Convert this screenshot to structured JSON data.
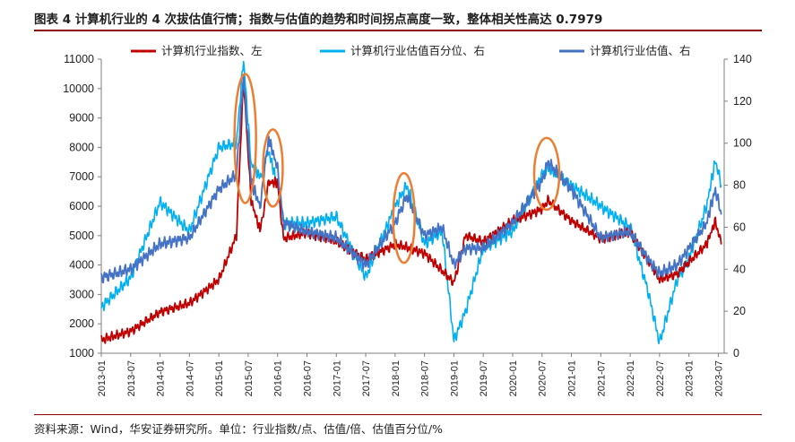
{
  "header": {
    "title": "图表 4  计算机行业的 4 次拔估值行情；指数与估值的趋势和时间拐点高度一致，整体相关性高达 0.7979"
  },
  "footer": {
    "source": "资料来源：Wind，华安证券研究所。单位：行业指数/点、估值/倍、估值百分位/%"
  },
  "chart_data": {
    "type": "line",
    "title": "计算机行业的 4 次拔估值行情",
    "y_left": {
      "min": 1000,
      "max": 11000,
      "ticks": [
        1000,
        2000,
        3000,
        4000,
        5000,
        6000,
        7000,
        8000,
        9000,
        10000,
        11000
      ]
    },
    "y_right": {
      "min": 0,
      "max": 140,
      "ticks": [
        0,
        20,
        40,
        60,
        80,
        100,
        120,
        140
      ]
    },
    "x_tick_labels": [
      "2013-01",
      "2013-07",
      "2014-01",
      "2014-07",
      "2015-01",
      "2015-07",
      "2016-01",
      "2016-07",
      "2017-01",
      "2017-07",
      "2018-01",
      "2018-07",
      "2019-01",
      "2019-07",
      "2020-01",
      "2020-07",
      "2021-01",
      "2021-07",
      "2022-01",
      "2022-07",
      "2023-01",
      "2023-07"
    ],
    "x": [
      2013.0,
      2013.5,
      2014.0,
      2014.5,
      2015.0,
      2015.3,
      2015.42,
      2015.55,
      2015.7,
      2015.85,
      2016.0,
      2016.1,
      2016.5,
      2017.0,
      2017.5,
      2018.0,
      2018.2,
      2018.5,
      2018.8,
      2019.0,
      2019.2,
      2019.5,
      2020.0,
      2020.5,
      2020.6,
      2021.0,
      2021.5,
      2022.0,
      2022.3,
      2022.5,
      2022.8,
      2023.0,
      2023.3,
      2023.45,
      2023.55
    ],
    "series": [
      {
        "name": "计算机行业指数、左",
        "axis": "left",
        "color": "#c00000",
        "values": [
          1450,
          1750,
          2400,
          2700,
          3500,
          5000,
          10300,
          6200,
          5200,
          6800,
          6800,
          4900,
          5100,
          4800,
          4200,
          4700,
          4600,
          4400,
          3800,
          3400,
          5000,
          4800,
          5500,
          5900,
          6200,
          5500,
          4900,
          5100,
          4200,
          3500,
          3700,
          4100,
          4700,
          5500,
          4700
        ]
      },
      {
        "name": "计算机行业估值百分位、右",
        "axis": "right",
        "color": "#00b0f0",
        "values": [
          22,
          36,
          72,
          58,
          98,
          100,
          140,
          90,
          84,
          96,
          80,
          62,
          62,
          65,
          36,
          70,
          80,
          52,
          58,
          6,
          20,
          50,
          58,
          85,
          88,
          80,
          70,
          60,
          30,
          5,
          35,
          45,
          70,
          92,
          80
        ]
      },
      {
        "name": "计算机行业估值、右",
        "axis": "right",
        "color": "#4472c4",
        "values": [
          36,
          40,
          52,
          55,
          78,
          85,
          132,
          82,
          70,
          102,
          88,
          62,
          58,
          55,
          42,
          62,
          75,
          56,
          60,
          42,
          50,
          50,
          62,
          82,
          91,
          78,
          55,
          58,
          45,
          38,
          42,
          50,
          62,
          78,
          66
        ]
      }
    ],
    "annotations": [
      "2015-06 peak",
      "2016-01 peak",
      "2018-03 peak",
      "2020-07 peak"
    ]
  }
}
